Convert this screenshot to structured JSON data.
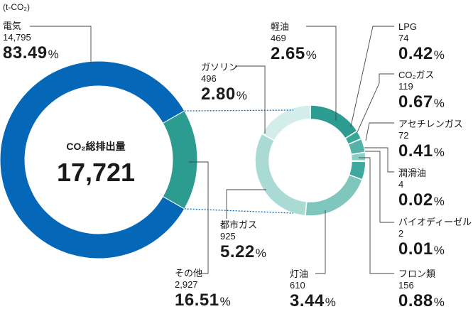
{
  "unit_label": "(t-CO₂)",
  "total": {
    "title": "CO₂総排出量",
    "value": "17,721"
  },
  "chart_data": {
    "type": "pie",
    "title": "CO₂総排出量",
    "unit": "t-CO₂",
    "total": 17721,
    "main": [
      {
        "key": "electric",
        "name": "電気",
        "value": "14,795",
        "pct": "83.49",
        "amount": 14795,
        "color": "#0567b8"
      },
      {
        "key": "other",
        "name": "その他",
        "value": "2,927",
        "pct": "16.51",
        "amount": 2927,
        "color": "#2c9c91"
      }
    ],
    "breakdown": [
      {
        "key": "diesel",
        "name": "軽油",
        "value": "469",
        "pct": "2.65",
        "amount": 469,
        "color": "#2c9c91"
      },
      {
        "key": "lpg",
        "name": "LPG",
        "value": "74",
        "pct": "0.42",
        "amount": 74,
        "color": "#3aa79b"
      },
      {
        "key": "co2gas",
        "name": "CO₂ガス",
        "value": "119",
        "pct": "0.67",
        "amount": 119,
        "color": "#56b2a8"
      },
      {
        "key": "acetylene",
        "name": "アセチレンガス",
        "value": "72",
        "pct": "0.41",
        "amount": 72,
        "color": "#8acfc6"
      },
      {
        "key": "lubricant",
        "name": "潤滑油",
        "value": "4",
        "pct": "0.02",
        "amount": 4,
        "color": "#56b2a8"
      },
      {
        "key": "biodiesel",
        "name": "バイオディーゼル",
        "value": "2",
        "pct": "0.01",
        "amount": 2,
        "color": "#8acfc6"
      },
      {
        "key": "freon",
        "name": "フロン類",
        "value": "156",
        "pct": "0.88",
        "amount": 156,
        "color": "#40a99e"
      },
      {
        "key": "kerosene",
        "name": "灯油",
        "value": "610",
        "pct": "3.44",
        "amount": 610,
        "color": "#7fc6bd"
      },
      {
        "key": "citygas",
        "name": "都市ガス",
        "value": "925",
        "pct": "5.22",
        "amount": 925,
        "color": "#a9dad4"
      },
      {
        "key": "gasoline",
        "name": "ガソリン",
        "value": "496",
        "pct": "2.80",
        "amount": 496,
        "color": "#d3edea"
      }
    ]
  }
}
